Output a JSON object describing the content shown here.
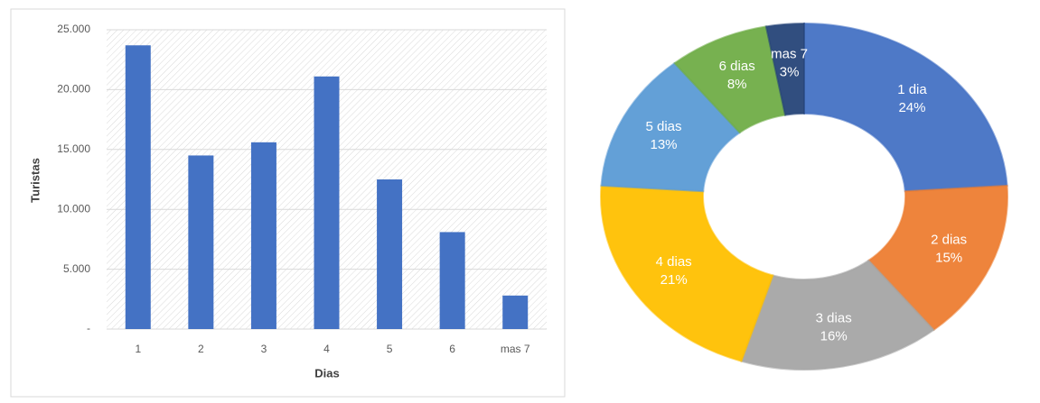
{
  "chart_data": [
    {
      "type": "bar",
      "xlabel": "Dias",
      "ylabel": "Turistas",
      "categories": [
        "1",
        "2",
        "3",
        "4",
        "5",
        "6",
        "mas 7"
      ],
      "values": [
        23700,
        14500,
        15600,
        21100,
        12500,
        8100,
        2800
      ],
      "color": "#4472c4",
      "ylim": [
        0,
        25000
      ],
      "yticks": [
        {
          "value": 0,
          "label": "-"
        },
        {
          "value": 5000,
          "label": "5.000"
        },
        {
          "value": 10000,
          "label": "10.000"
        },
        {
          "value": 15000,
          "label": "15.000"
        },
        {
          "value": 20000,
          "label": "20.000"
        },
        {
          "value": 25000,
          "label": "25.000"
        }
      ],
      "grid": true
    },
    {
      "type": "donut",
      "categories": [
        "1 dia",
        "2 dias",
        "3 dias",
        "4 dias",
        "5 dias",
        "6 dias",
        "mas 7"
      ],
      "values": [
        24,
        15,
        16,
        21,
        13,
        8,
        3
      ],
      "value_labels": [
        "24%",
        "15%",
        "16%",
        "21%",
        "13%",
        "8%",
        "3%"
      ],
      "colors": [
        "#4472c4",
        "#ed7d31",
        "#a5a5a5",
        "#ffc000",
        "#5b9bd5",
        "#70ad47",
        "#264478"
      ]
    }
  ]
}
